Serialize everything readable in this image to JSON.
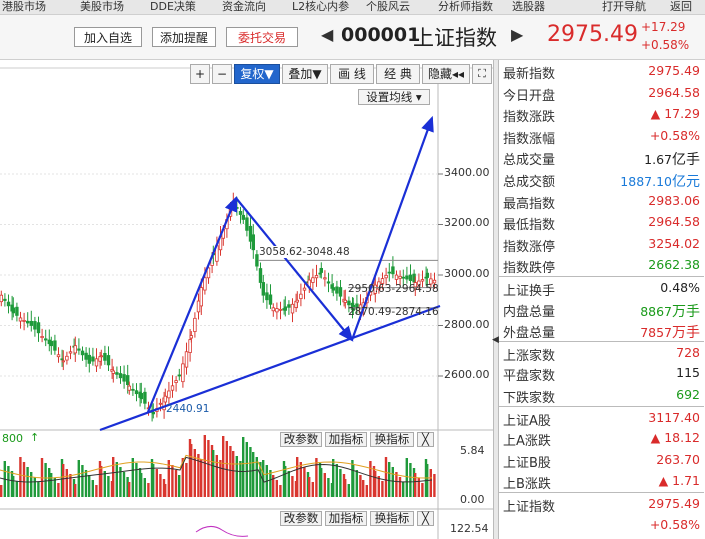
{
  "top_menu": [
    "港股市场",
    "美股市场",
    "DDE决策",
    "资金流向",
    "L2核心内参",
    "个股风云",
    "分析师指数",
    "选股器",
    "打开导航",
    "返回"
  ],
  "header": {
    "add_watch": "加入自选",
    "add_alert": "添加提醒",
    "entrust": "委托交易",
    "code": "000001",
    "name": "上证指数",
    "price": "2975.49",
    "change": "+17.29",
    "change_pct": "+0.58%"
  },
  "toolbar": {
    "zoom_in": "+",
    "zoom_out": "−",
    "fuquan": "复权▼",
    "overlay": "叠加▼",
    "draw_line": "画 线",
    "classic": "经 典",
    "hide": "隐藏◂◂",
    "fullscreen_icon": "fullscreen-icon",
    "ma_settings": "设置均线 ▾"
  },
  "chart_data": {
    "type": "candlestick",
    "y_ticks": [
      "3400.00",
      "3200.00",
      "3000.00",
      "2800.00",
      "2600.00"
    ],
    "annotations": [
      "3058.62-3048.48",
      "2950.63-2964.58",
      "2870.49-2874.16",
      "2440.91"
    ],
    "volume_ticks": [
      "5.84",
      "0.00"
    ],
    "lower_tick": "122.54",
    "volume_label": "800",
    "sub_buttons": [
      "改参数",
      "加指标",
      "换指标",
      "╳"
    ]
  },
  "quote_panel": {
    "rows": [
      {
        "label": "最新指数",
        "value": "2975.49",
        "color": "red"
      },
      {
        "label": "今日开盘",
        "value": "2964.58",
        "color": "red"
      },
      {
        "label": "指数涨跌",
        "value": "▲ 17.29",
        "color": "red"
      },
      {
        "label": "指数涨幅",
        "value": "+0.58%",
        "color": "red"
      },
      {
        "label": "总成交量",
        "value": "1.67",
        "unit": "亿手",
        "color": "dark"
      },
      {
        "label": "总成交额",
        "value": "1887.10",
        "unit": "亿元",
        "color": "blue"
      },
      {
        "label": "最高指数",
        "value": "2983.06",
        "color": "red"
      },
      {
        "label": "最低指数",
        "value": "2964.58",
        "color": "red"
      },
      {
        "label": "指数涨停",
        "value": "3254.02",
        "color": "red"
      },
      {
        "label": "指数跌停",
        "value": "2662.38",
        "color": "green"
      },
      {
        "label": "上证换手",
        "value": "0.48%",
        "color": "dark"
      },
      {
        "label": "内盘总量",
        "value": "8867",
        "unit": "万手",
        "color": "green"
      },
      {
        "label": "外盘总量",
        "value": "7857",
        "unit": "万手",
        "color": "red"
      },
      {
        "label": "上涨家数",
        "value": "728",
        "color": "red"
      },
      {
        "label": "平盘家数",
        "value": "115",
        "color": "dark"
      },
      {
        "label": "下跌家数",
        "value": "692",
        "color": "green"
      },
      {
        "label": "上证A股",
        "value": "3117.40",
        "color": "red"
      },
      {
        "label": "上A涨跌",
        "value": "▲ 18.12",
        "color": "red"
      },
      {
        "label": "上证B股",
        "value": "263.70",
        "color": "red"
      },
      {
        "label": "上B涨跌",
        "value": "▲ 1.71",
        "color": "red"
      },
      {
        "label": "上证指数",
        "value": "2975.49",
        "color": "red"
      },
      {
        "label": "",
        "value": "+0.58%",
        "color": "red"
      }
    ]
  }
}
